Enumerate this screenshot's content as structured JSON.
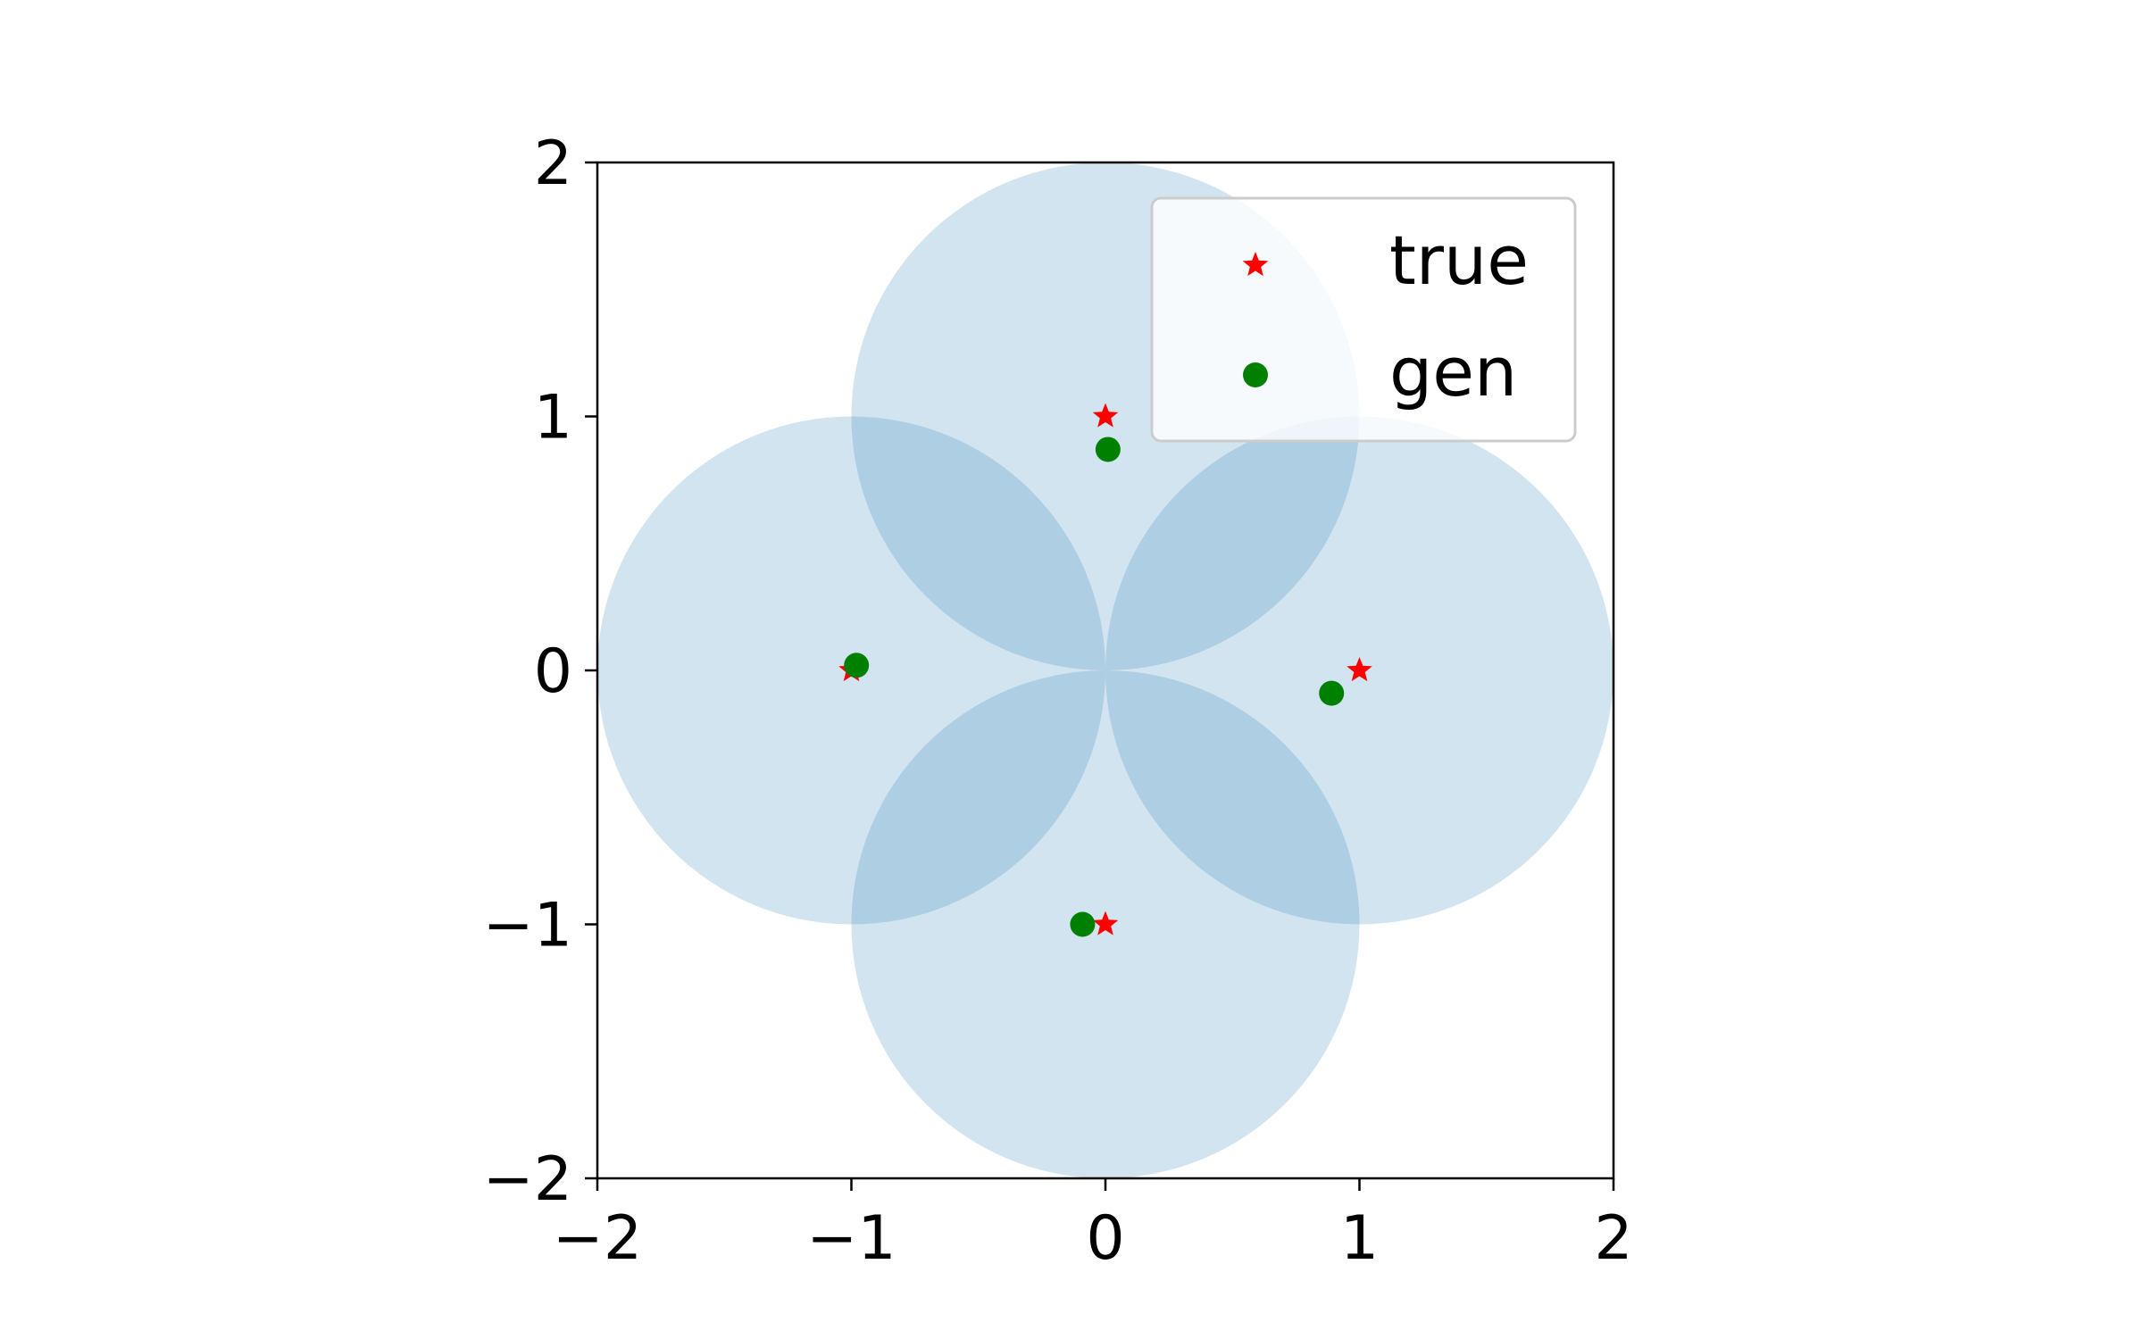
{
  "chart_data": {
    "type": "scatter",
    "title": "",
    "xlabel": "",
    "ylabel": "",
    "xlim": [
      -2,
      2
    ],
    "ylim": [
      -2,
      2
    ],
    "aspect": "equal",
    "grid": false,
    "x_ticks": [
      -2,
      -1,
      0,
      1,
      2
    ],
    "y_ticks": [
      -2,
      -1,
      0,
      1,
      2
    ],
    "x_tick_labels": [
      "−2",
      "−1",
      "0",
      "1",
      "2"
    ],
    "y_tick_labels": [
      "−2",
      "−1",
      "0",
      "1",
      "2"
    ],
    "regions": [
      {
        "cx": 0,
        "cy": 1,
        "r": 1
      },
      {
        "cx": -1,
        "cy": 0,
        "r": 1
      },
      {
        "cx": 1,
        "cy": 0,
        "r": 1
      },
      {
        "cx": 0,
        "cy": -1,
        "r": 1
      }
    ],
    "region_color": "#1f77b4",
    "region_opacity": 0.2,
    "series": [
      {
        "name": "true",
        "marker": "star",
        "color": "#ff0000",
        "points": [
          [
            0,
            1
          ],
          [
            -1,
            0
          ],
          [
            1,
            0
          ],
          [
            0,
            -1
          ]
        ]
      },
      {
        "name": "gen",
        "marker": "circle",
        "color": "#008000",
        "points": [
          [
            0.01,
            0.87
          ],
          [
            -0.98,
            0.02
          ],
          [
            0.89,
            -0.09
          ],
          [
            -0.09,
            -1.0
          ]
        ]
      }
    ],
    "legend": {
      "position": "upper-right"
    }
  }
}
